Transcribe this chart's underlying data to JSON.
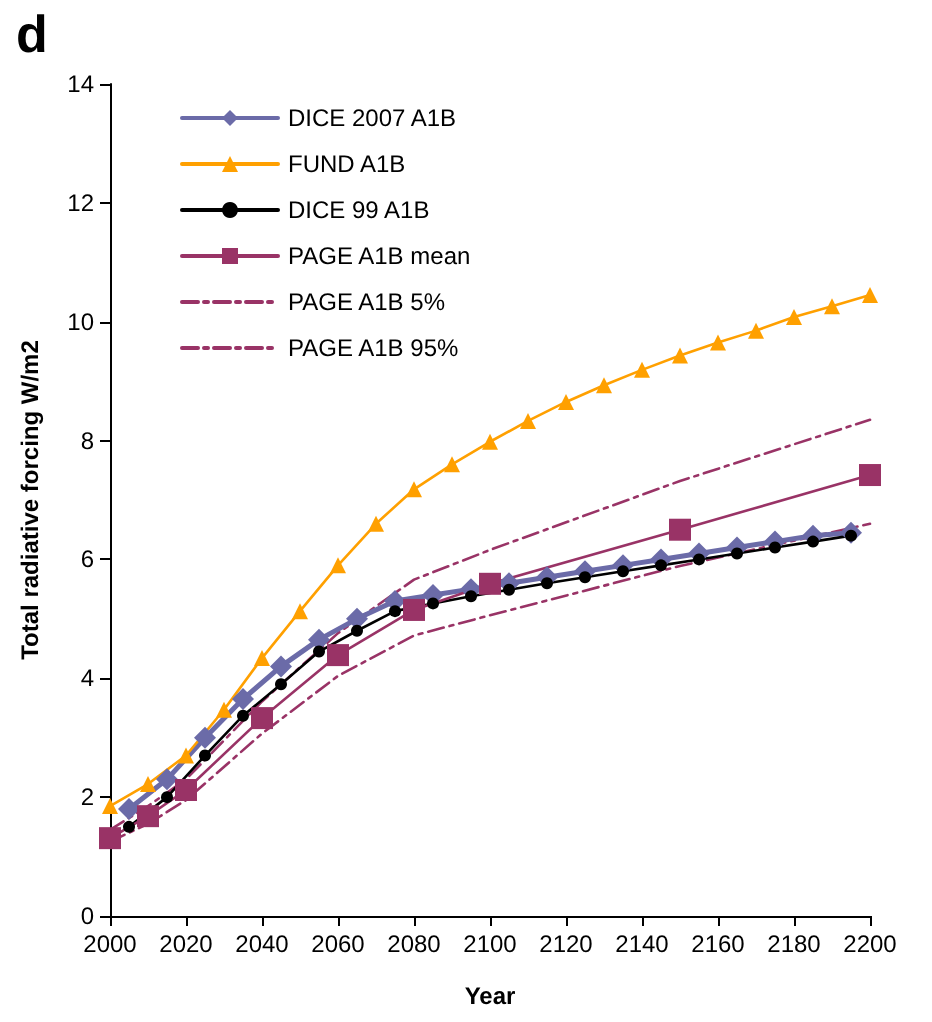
{
  "chart_data": {
    "type": "line",
    "xlabel": "Year",
    "ylabel": "Total radiative forcing W/m2",
    "annotations": [
      "d"
    ],
    "xlim": [
      2000,
      2200
    ],
    "xticks": [
      2000,
      2020,
      2040,
      2060,
      2080,
      2100,
      2120,
      2140,
      2160,
      2180,
      2200
    ],
    "ylim": [
      0,
      14
    ],
    "yticks": [
      0,
      2,
      4,
      6,
      8,
      10,
      12,
      14
    ],
    "grid": false,
    "legend": "top left",
    "series": [
      {
        "name": "DICE 2007 A1B",
        "color": "#6b6ba8",
        "marker": "diamond",
        "line_style": "solid",
        "x": [
          2005,
          2015,
          2025,
          2035,
          2045,
          2055,
          2065,
          2075,
          2085,
          2095,
          2105,
          2115,
          2125,
          2135,
          2145,
          2155,
          2165,
          2175,
          2185,
          2195
        ],
        "values": [
          1.8,
          2.3,
          3.0,
          3.65,
          4.2,
          4.65,
          5.0,
          5.3,
          5.4,
          5.5,
          5.6,
          5.7,
          5.8,
          5.9,
          6.0,
          6.1,
          6.2,
          6.3,
          6.4,
          6.45
        ]
      },
      {
        "name": "FUND A1B",
        "color": "#ffa000",
        "marker": "triangle",
        "line_style": "solid",
        "x": [
          2000,
          2010,
          2020,
          2030,
          2040,
          2050,
          2060,
          2070,
          2080,
          2090,
          2100,
          2110,
          2120,
          2130,
          2140,
          2150,
          2160,
          2170,
          2180,
          2190,
          2200
        ],
        "values": [
          1.85,
          2.22,
          2.7,
          3.47,
          4.34,
          5.13,
          5.9,
          6.6,
          7.18,
          7.6,
          7.98,
          8.33,
          8.65,
          8.93,
          9.19,
          9.43,
          9.65,
          9.85,
          10.08,
          10.26,
          10.45
        ]
      },
      {
        "name": "DICE 99 A1B",
        "color": "#000000",
        "marker": "circle",
        "line_style": "solid",
        "x": [
          2005,
          2015,
          2025,
          2035,
          2045,
          2055,
          2065,
          2075,
          2085,
          2095,
          2105,
          2115,
          2125,
          2135,
          2145,
          2155,
          2165,
          2175,
          2185,
          2195
        ],
        "values": [
          1.5,
          2.0,
          2.7,
          3.37,
          3.9,
          4.45,
          4.8,
          5.13,
          5.26,
          5.38,
          5.49,
          5.6,
          5.7,
          5.8,
          5.9,
          6.0,
          6.1,
          6.2,
          6.3,
          6.4
        ]
      },
      {
        "name": "PAGE A1B mean",
        "color": "#993366",
        "marker": "square",
        "line_style": "solid",
        "x": [
          2000,
          2010,
          2020,
          2040,
          2060,
          2080,
          2100,
          2150,
          2200
        ],
        "values": [
          1.31,
          1.68,
          2.12,
          3.33,
          4.39,
          5.15,
          5.59,
          6.5,
          7.42
        ]
      },
      {
        "name": "PAGE A1B 5%",
        "color": "#993366",
        "marker": "none",
        "line_style": "dashdot",
        "x": [
          2000,
          2010,
          2020,
          2040,
          2060,
          2080,
          2100,
          2150,
          2200
        ],
        "values": [
          1.25,
          1.55,
          1.95,
          3.07,
          4.04,
          4.72,
          5.06,
          5.89,
          6.6
        ]
      },
      {
        "name": "PAGE A1B 95%",
        "color": "#993366",
        "marker": "none",
        "line_style": "dashdot",
        "x": [
          2000,
          2010,
          2020,
          2040,
          2060,
          2080,
          2100,
          2150,
          2200
        ],
        "values": [
          1.45,
          1.85,
          2.3,
          3.61,
          4.76,
          5.66,
          6.16,
          7.32,
          8.35
        ]
      }
    ]
  }
}
